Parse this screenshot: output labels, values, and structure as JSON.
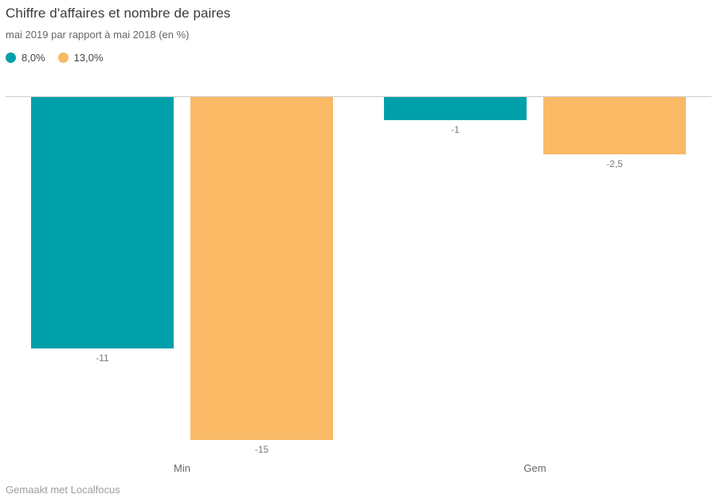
{
  "chart_data": {
    "type": "bar",
    "orientation": "vertical",
    "title": "Chiffre d'affaires et nombre de paires",
    "subtitle": "mai 2019 par rapport à mai 2018 (en %)",
    "categories": [
      "Min",
      "Gem"
    ],
    "series": [
      {
        "name": "8,0%",
        "color": "#00a0ab",
        "values": [
          -11,
          -1
        ],
        "value_labels": [
          "-11",
          "-1"
        ]
      },
      {
        "name": "13,0%",
        "color": "#fab964",
        "values": [
          -15,
          -2.5
        ],
        "value_labels": [
          "-15",
          "-2,5"
        ]
      }
    ],
    "ylim": [
      -15,
      0
    ],
    "baseline": 0,
    "grid": false,
    "legend_position": "top-left",
    "axis_line_color": "#cccccc"
  },
  "footer": {
    "attribution": "Gemaakt met Localfocus"
  }
}
